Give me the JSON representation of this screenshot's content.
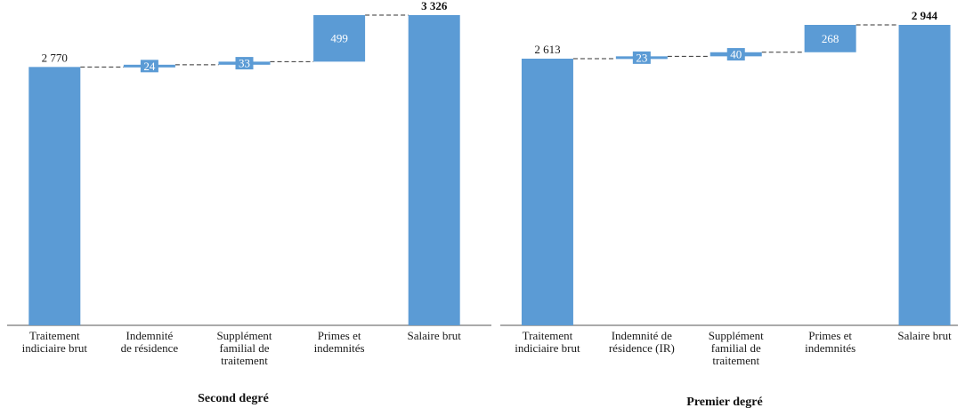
{
  "colors": {
    "bar": "#5b9bd5",
    "axis": "#555555",
    "connector": "#333333",
    "text": "#1a1a1a"
  },
  "chart_data": [
    {
      "type": "bar",
      "subtype": "waterfall",
      "title": "Second degré",
      "categories": [
        [
          "Traitement",
          "indiciaire brut"
        ],
        [
          "Indemnité",
          "de résidence"
        ],
        [
          "Supplément",
          "familial de",
          "traitement"
        ],
        [
          "Primes et",
          "indemnités"
        ],
        [
          "Salaire brut"
        ]
      ],
      "values": [
        2770,
        24,
        33,
        499,
        3326
      ],
      "value_labels": [
        "2 770",
        "24",
        "33",
        "499",
        "3 326"
      ],
      "kinds": [
        "base",
        "increment",
        "increment",
        "increment",
        "total"
      ],
      "ylim": [
        0,
        3326
      ],
      "grid": false,
      "xlabel": "",
      "ylabel": ""
    },
    {
      "type": "bar",
      "subtype": "waterfall",
      "title": "Premier degré",
      "categories": [
        [
          "Traitement",
          "indiciaire brut"
        ],
        [
          "Indemnité de",
          "résidence (IR)"
        ],
        [
          "Supplément",
          "familial de",
          "traitement"
        ],
        [
          "Primes et",
          "indemnités"
        ],
        [
          "Salaire brut"
        ]
      ],
      "values": [
        2613,
        23,
        40,
        268,
        2944
      ],
      "value_labels": [
        "2 613",
        "23",
        "40",
        "268",
        "2 944"
      ],
      "kinds": [
        "base",
        "increment",
        "increment",
        "increment",
        "total"
      ],
      "ylim": [
        0,
        2944
      ],
      "grid": false,
      "xlabel": "",
      "ylabel": ""
    }
  ]
}
